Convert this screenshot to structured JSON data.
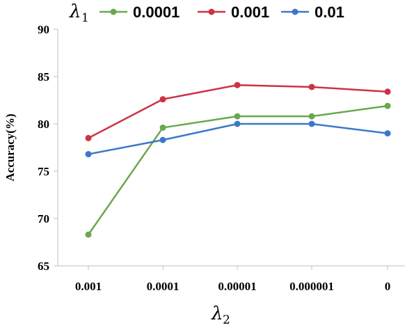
{
  "chart_data": {
    "type": "line",
    "legend_title": "λ",
    "legend_title_sub": "1",
    "xlabel": "λ",
    "xlabel_sub": "2",
    "ylabel": "Accuracy(%)",
    "categories": [
      "0.001",
      "0.0001",
      "0.00001",
      "0.000001",
      "0"
    ],
    "ylim": [
      65,
      90
    ],
    "yticks": [
      "65",
      "70",
      "75",
      "80",
      "85",
      "90"
    ],
    "legend_position": "top",
    "grid": false,
    "series": [
      {
        "name": "0.0001",
        "color": "#6aa84f",
        "values": [
          68.3,
          79.6,
          80.8,
          80.8,
          81.9
        ]
      },
      {
        "name": "0.001",
        "color": "#cc3344",
        "values": [
          78.5,
          82.6,
          84.1,
          83.9,
          83.4
        ]
      },
      {
        "name": "0.01",
        "color": "#3d78c8",
        "values": [
          76.8,
          78.3,
          80.0,
          80.0,
          79.0
        ]
      }
    ]
  }
}
